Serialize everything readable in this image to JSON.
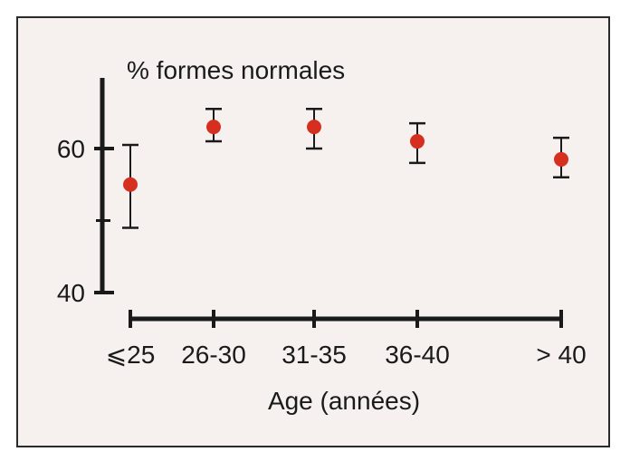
{
  "chart_data": {
    "type": "scatter",
    "title": "",
    "ylabel": "% formes normales",
    "xlabel": "Age (années)",
    "categories": [
      "⩽25",
      "26-30",
      "31-35",
      "36-40",
      "> 40"
    ],
    "series": [
      {
        "values": [
          55,
          63,
          63,
          61,
          58.5
        ],
        "error_low": [
          49,
          61,
          60,
          58,
          56
        ],
        "error_high": [
          60.5,
          65.5,
          65.5,
          63.5,
          61.5
        ],
        "color": "#d62f20"
      }
    ],
    "yticks": [
      40,
      60
    ],
    "ylim": [
      40,
      70
    ],
    "grid": false
  }
}
